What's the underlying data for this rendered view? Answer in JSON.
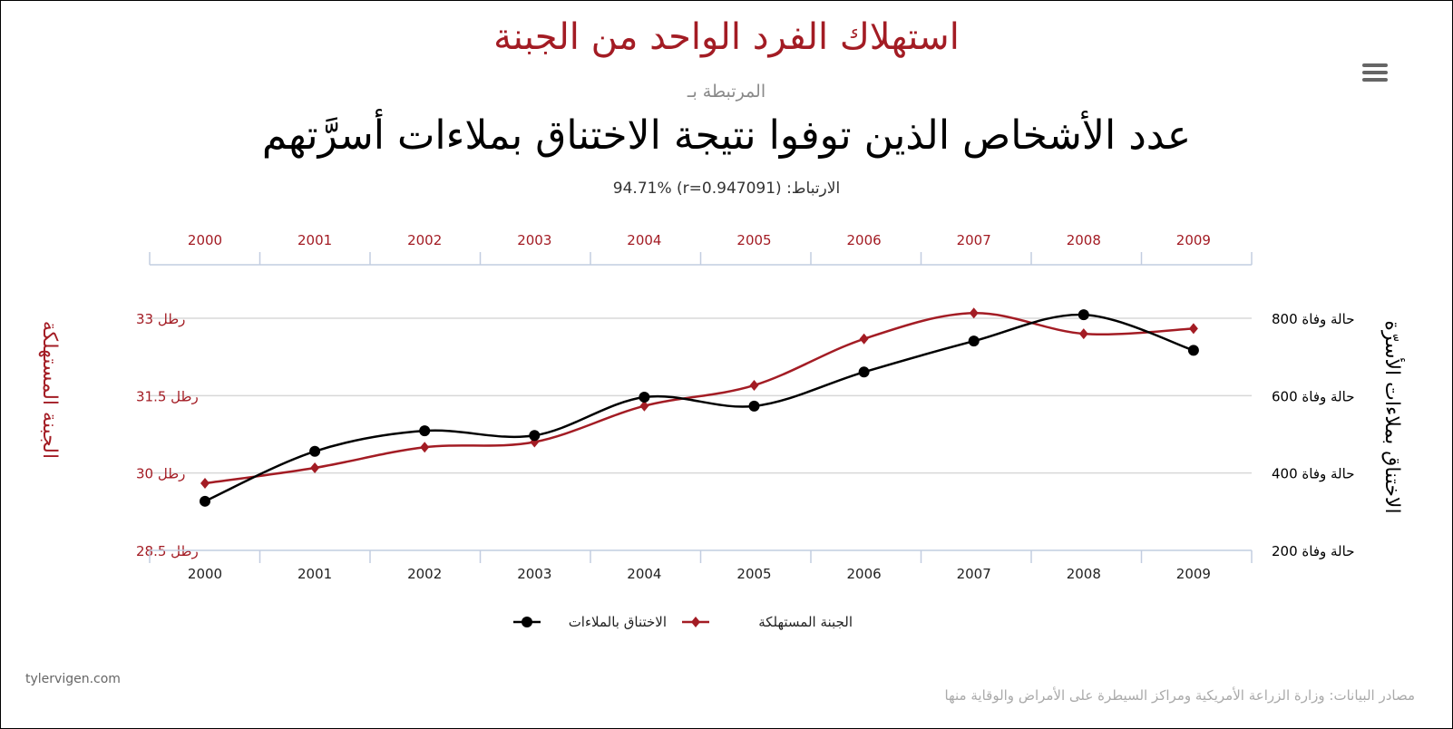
{
  "title": "استهلاك الفرد الواحد من الجبنة",
  "connector": "المرتبطة بـ",
  "subtitle": "عدد الأشخاص الذين توفوا نتيجة الاختناق بملاءات أسرَّتهم",
  "correlation": "الارتباط:  (r=0.947091) 94.71%",
  "menu_icon": "hamburger-menu-icon",
  "footer": {
    "site": "tylervigen.com",
    "sources": "مصادر البيانات: وزارة الزراعة الأمريكية ومراكز السيطرة على الأمراض والوقاية منها"
  },
  "chart_data": {
    "type": "line",
    "x": [
      "2000",
      "2001",
      "2002",
      "2003",
      "2004",
      "2005",
      "2006",
      "2007",
      "2008",
      "2009"
    ],
    "grid": true,
    "legend_position": "bottom",
    "left_axis": {
      "label": "الجبنة المستهلكة",
      "ticks": [
        28.5,
        30,
        31.5,
        33
      ],
      "tick_labels": [
        "رطل 28.5",
        "رطل 30",
        "رطل 31.5",
        "رطل 33"
      ],
      "range": [
        28.5,
        33
      ],
      "color": "#a31c24"
    },
    "right_axis": {
      "label": "الاختناق بملاءات الأسرّة",
      "ticks": [
        200,
        400,
        600,
        800
      ],
      "tick_labels": [
        "حالة وفاة 200",
        "حالة وفاة 400",
        "حالة وفاة 600",
        "حالة وفاة 800"
      ],
      "range": [
        200,
        800
      ],
      "color": "#000000"
    },
    "series": [
      {
        "name": "الاختناق بالملاءات",
        "axis": "right",
        "color": "#000000",
        "marker": "circle",
        "values": [
          327,
          456,
          509,
          497,
          596,
          573,
          661,
          741,
          809,
          717
        ]
      },
      {
        "name": "الجبنة المستهلكة",
        "axis": "left",
        "color": "#a31c24",
        "marker": "diamond",
        "values": [
          29.8,
          30.1,
          30.5,
          30.6,
          31.3,
          31.7,
          32.6,
          33.1,
          32.7,
          32.8
        ]
      }
    ]
  }
}
